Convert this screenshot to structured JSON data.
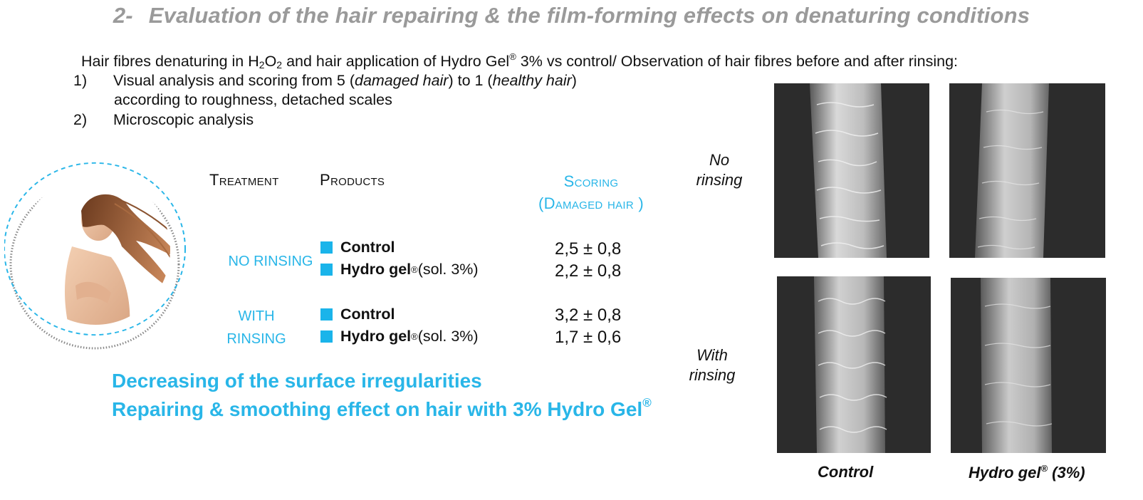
{
  "title": {
    "number": "2-",
    "text": "Evaluation of the hair repairing & the film-forming effects on denaturing conditions"
  },
  "intro": {
    "part1": "Hair fibres denaturing in H",
    "sub1": "2",
    "part2": "O",
    "sub2": "2",
    "part3": " and hair application of Hydro Gel",
    "reg": "®",
    "part4": " 3% vs control/ Observation of hair fibres before and after rinsing:"
  },
  "steps": [
    {
      "num": "1)",
      "text_a": "Visual analysis and scoring from 5 (",
      "em_a": "damaged hair",
      "text_b": ") to 1 (",
      "em_b": "healthy hair",
      "text_c": ")",
      "line2": "according to roughness, detached scales"
    },
    {
      "num": "2)",
      "text_a": "Microscopic analysis"
    }
  ],
  "table": {
    "header_treatment": "Treatment",
    "header_products": "Products",
    "header_scoring": "Scoring",
    "header_scoring2": "(Damaged hair )",
    "groups": [
      {
        "label_line1": "NO RINSING",
        "label_line2": "",
        "rows": [
          {
            "product": "Control",
            "suffix": "",
            "reg": "",
            "score": "2,5 ± 0,8"
          },
          {
            "product": "Hydro gel",
            "reg": "®",
            "suffix": " (sol. 3%)",
            "score": "2,2 ± 0,8"
          }
        ]
      },
      {
        "label_line1": "WITH",
        "label_line2": "RINSING",
        "rows": [
          {
            "product": "Control",
            "suffix": "",
            "reg": "",
            "score": "3,2 ± 0,8"
          },
          {
            "product": "Hydro gel",
            "reg": "®",
            "suffix": " (sol. 3%)",
            "score": "1,7 ± 0,6"
          }
        ]
      }
    ]
  },
  "conclusions": {
    "line1": "Decreasing of the surface irregularities",
    "line2": "Repairing & smoothing effect on hair with 3% Hydro Gel",
    "reg": "®"
  },
  "micrographs": {
    "row_labels": [
      {
        "line1": "No",
        "line2": "rinsing"
      },
      {
        "line1": "With",
        "line2": "rinsing"
      }
    ],
    "captions": {
      "control": "Control",
      "hydro": "Hydro gel",
      "hydro_reg": "®",
      "hydro_suffix": " (3%)"
    }
  },
  "colors": {
    "accent": "#29b6e8",
    "title_gray": "#9a9a9a",
    "square": "#1ab4ea"
  }
}
